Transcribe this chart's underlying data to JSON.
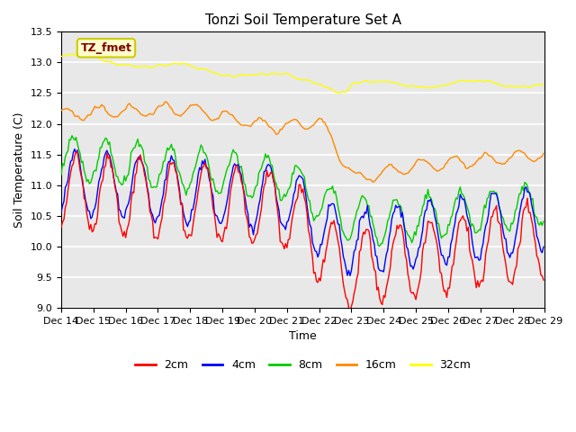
{
  "title": "Tonzi Soil Temperature Set A",
  "xlabel": "Time",
  "ylabel": "Soil Temperature (C)",
  "ylim": [
    9.0,
    13.5
  ],
  "annotation_text": "TZ_fmet",
  "annotation_bbox": {
    "boxstyle": "round,pad=0.3",
    "facecolor": "#ffffcc",
    "edgecolor": "#cccc00",
    "linewidth": 1.5
  },
  "annotation_text_color": "#800000",
  "annotation_fontsize": 9,
  "annotation_fontweight": "bold",
  "legend_labels": [
    "2cm",
    "4cm",
    "8cm",
    "16cm",
    "32cm"
  ],
  "legend_colors": [
    "#ff0000",
    "#0000ff",
    "#00cc00",
    "#ff8800",
    "#ffff00"
  ],
  "line_width": 1.0,
  "plot_bg_color": "#e8e8e8",
  "grid_color": "white",
  "title_fontsize": 11,
  "axis_label_fontsize": 9,
  "tick_label_fontsize": 8,
  "n_points": 360,
  "x_tick_labels": [
    "Dec 14",
    "Dec 15",
    "Dec 16",
    "Dec 17",
    "Dec 18",
    "Dec 19",
    "Dec 20",
    "Dec 21",
    "Dec 22",
    "Dec 23",
    "Dec 24",
    "Dec 25",
    "Dec 26",
    "Dec 27",
    "Dec 28",
    "Dec 29"
  ],
  "x_tick_positions": [
    0,
    24,
    48,
    72,
    96,
    120,
    144,
    168,
    192,
    216,
    240,
    264,
    288,
    312,
    336,
    360
  ]
}
